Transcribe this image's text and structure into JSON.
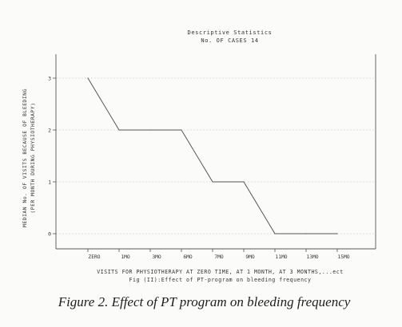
{
  "figure": {
    "caption": "Figure 2.  Effect of PT program on bleeding frequency"
  },
  "chart_data": {
    "type": "line",
    "title": "Descriptive Statistics",
    "subtitle": "No. OF CASES 14",
    "xlabel": "VISITS FOR PHYSIOTHERAPY AT ZERO TIME, AT 1 MONTH, AT 3 MONTHS,...ect",
    "xlabel2": "Fig (II):Effect of PT-program on bleeding frequency",
    "ylabel": "MEDIAN No. OF VISITS BECAUSE OF BLEEDING",
    "ylabel2": "(PER MONTH DURING PHYSIOTHERAPY)",
    "categories": [
      "ZERO",
      "1MO",
      "3MO",
      "6MO",
      "7MO",
      "9MO",
      "11MO",
      "13MO",
      "15MO"
    ],
    "values": [
      3,
      2,
      2,
      2,
      1,
      1,
      0,
      0,
      0
    ],
    "yticks": [
      "0",
      "1",
      "2",
      "3"
    ],
    "ylim": [
      0,
      3
    ],
    "grid": true,
    "colors": {
      "line": "#555555",
      "axis": "#555555",
      "grid": "#c8c8c8"
    }
  }
}
